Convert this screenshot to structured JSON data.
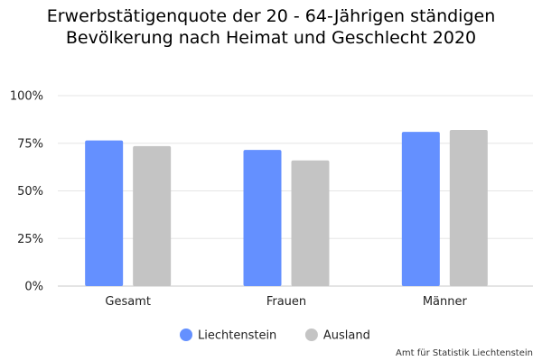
{
  "chart_data": {
    "type": "bar",
    "title": "Erwerbstätigenquote der 20 - 64-Jährigen ständigen Bevölkerung nach Heimat und Geschlecht 2020",
    "categories": [
      "Gesamt",
      "Frauen",
      "Männer"
    ],
    "series": [
      {
        "name": "Liechtenstein",
        "color": "#6490ff",
        "values": [
          76.5,
          71.5,
          81.0
        ]
      },
      {
        "name": "Ausland",
        "color": "#c4c4c4",
        "values": [
          73.5,
          66.0,
          82.0
        ]
      }
    ],
    "ylim": [
      0,
      100
    ],
    "yticks": [
      0,
      25,
      50,
      75,
      100
    ],
    "ytick_labels": [
      "0%",
      "25%",
      "50%",
      "75%",
      "100%"
    ],
    "grid": true,
    "legend_position": "bottom-center"
  },
  "source": "Amt für Statistik Liechtenstein"
}
